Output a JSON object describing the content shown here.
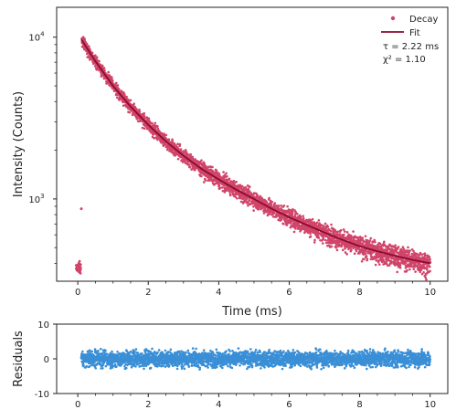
{
  "chart_data": [
    {
      "panel": "main",
      "type": "scatter",
      "xlabel": "Time (ms)",
      "ylabel": "Intensity (Counts)",
      "xlim": [
        -0.6,
        10.5
      ],
      "ylim": [
        310,
        15300
      ],
      "yscale": "log",
      "grid": false,
      "legend_position": "top-right",
      "x_ticks": [
        0,
        2,
        4,
        6,
        8,
        10
      ],
      "x_tick_labels": [
        "0",
        "2",
        "4",
        "6",
        "8",
        "10"
      ],
      "y_ticks": [
        1000,
        10000
      ],
      "y_tick_labels": [
        {
          "base": "10",
          "exp": "3"
        },
        {
          "base": "10",
          "exp": "4"
        }
      ],
      "series": [
        {
          "name": "Decay",
          "kind": "points",
          "color": "#d0456a",
          "x": [
            0.0,
            0.02,
            0.04,
            0.06,
            0.08,
            0.1,
            0.12,
            0.25,
            0.5,
            0.75,
            1.0,
            1.5,
            2.0,
            2.5,
            3.0,
            3.5,
            4.0,
            4.5,
            5.0,
            5.5,
            6.0,
            6.5,
            7.0,
            7.5,
            8.0,
            8.5,
            9.0,
            9.5,
            10.0
          ],
          "y": [
            370,
            385,
            360,
            395,
            375,
            870,
            9800,
            8900,
            7200,
            6000,
            5000,
            3720,
            2870,
            2270,
            1850,
            1540,
            1320,
            1140,
            1000,
            860,
            770,
            680,
            610,
            560,
            510,
            480,
            450,
            425,
            405
          ]
        },
        {
          "name": "Fit",
          "kind": "line",
          "color": "#8b0a2e",
          "x": [
            0.1,
            0.5,
            1.0,
            1.5,
            2.0,
            2.5,
            3.0,
            3.5,
            4.0,
            4.5,
            5.0,
            5.5,
            6.0,
            6.5,
            7.0,
            7.5,
            8.0,
            8.5,
            9.0,
            9.5,
            10.0
          ],
          "y": [
            9700,
            7100,
            5000,
            3720,
            2870,
            2270,
            1850,
            1540,
            1320,
            1140,
            1000,
            870,
            770,
            690,
            620,
            560,
            510,
            475,
            445,
            420,
            400
          ]
        }
      ],
      "legend": [
        {
          "label": "Decay",
          "marker": "point",
          "color": "#d0456a"
        },
        {
          "label": "Fit",
          "marker": "line",
          "color": "#8b0a2e"
        }
      ],
      "annotations": [
        "τ = 2.22 ms",
        "χ² = 1.10"
      ]
    },
    {
      "panel": "residuals",
      "type": "scatter",
      "xlabel": "",
      "ylabel": "Residuals",
      "xlim": [
        -0.6,
        10.5
      ],
      "ylim": [
        -10,
        10
      ],
      "grid": false,
      "x_ticks": [
        0,
        2,
        4,
        6,
        8,
        10
      ],
      "x_tick_labels": [
        "0",
        "2",
        "4",
        "6",
        "8",
        "10"
      ],
      "y_ticks": [
        -10,
        0,
        10
      ],
      "y_tick_labels": [
        "-10",
        "0",
        "10"
      ],
      "series": [
        {
          "kind": "points",
          "color": "#3a8fd6",
          "x_range": [
            0.1,
            10.0
          ],
          "spread": 2.0,
          "x": [
            0.2,
            1.0,
            2.0,
            3.0,
            4.0,
            5.0,
            6.0,
            7.0,
            8.0,
            9.0,
            10.0
          ],
          "y": [
            0.3,
            -0.4,
            0.8,
            -0.6,
            0.2,
            0.5,
            -0.7,
            0.4,
            -0.3,
            0.6,
            -0.2
          ]
        }
      ]
    }
  ]
}
